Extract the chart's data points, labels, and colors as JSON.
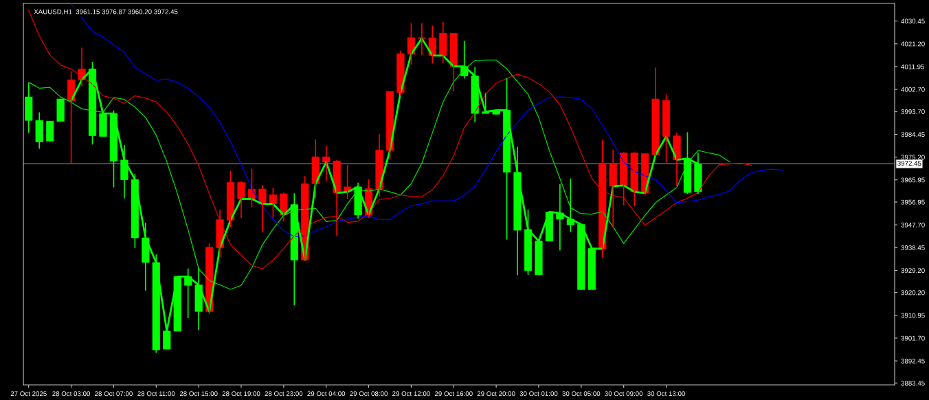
{
  "chart_data": {
    "type": "candlestick",
    "title": "XAUUSD,H1  3961.15 3976.87 3960.20 3972.45",
    "categories": [
      "27 Oct 2025",
      null,
      null,
      null,
      "28 Oct 03:00",
      null,
      null,
      null,
      "28 Oct 07:00",
      null,
      null,
      null,
      "28 Oct 11:00",
      null,
      null,
      null,
      "28 Oct 15:00",
      null,
      null,
      null,
      "28 Oct 19:00",
      null,
      null,
      null,
      "28 Oct 23:00",
      null,
      null,
      null,
      "29 Oct 04:00",
      null,
      null,
      null,
      "29 Oct 08:00",
      null,
      null,
      null,
      "29 Oct 12:00",
      null,
      null,
      null,
      "29 Oct 16:00",
      null,
      null,
      null,
      "29 Oct 20:00",
      null,
      null,
      null,
      "30 Oct 01:00",
      null,
      null,
      null,
      "30 Oct 05:00",
      null,
      null,
      null,
      "30 Oct 09:00",
      null,
      null,
      null,
      "30 Oct 13:00",
      null,
      null,
      null,
      null,
      null,
      null,
      null,
      null,
      null,
      null,
      null,
      null,
      null,
      null,
      null,
      null,
      null,
      null,
      null,
      null,
      null
    ],
    "ohlc": [
      [
        3990.1,
        4005.3,
        3985.1,
        3999.6
      ],
      [
        3981.4,
        3993.4,
        3978.6,
        3990.1
      ],
      [
        3981.7,
        3989.8,
        3981.4,
        3989.8
      ],
      [
        3989.7,
        3998.8,
        3989.7,
        3998.8
      ],
      [
        4006.6,
        4010.0,
        3972.4,
        3998.1
      ],
      [
        4011.0,
        4019.7,
        4004.0,
        4006.6
      ],
      [
        3983.9,
        4013.8,
        3980.3,
        4011.0
      ],
      [
        3983.6,
        3992.9,
        3983.6,
        3992.9
      ],
      [
        3973.6,
        3994.2,
        3962.9,
        3992.9
      ],
      [
        3966.0,
        3980.2,
        3958.5,
        3974.0
      ],
      [
        3942.4,
        3968.3,
        3938.3,
        3966.1
      ],
      [
        3932.4,
        3948.6,
        3921.0,
        3942.4
      ],
      [
        3896.9,
        3935.7,
        3895.7,
        3932.4
      ],
      [
        3897.2,
        3904.6,
        3897.2,
        3904.6
      ],
      [
        3904.5,
        3926.7,
        3904.5,
        3926.7
      ],
      [
        3923.1,
        3930.0,
        3909.8,
        3926.7
      ],
      [
        3912.5,
        3930.0,
        3905.0,
        3923.3
      ],
      [
        3938.6,
        3940.1,
        3911.5,
        3912.5
      ],
      [
        3949.8,
        3953.9,
        3934.5,
        3938.4
      ],
      [
        3964.9,
        3969.6,
        3946.7,
        3949.6
      ],
      [
        3964.9,
        3965.3,
        3950.5,
        3958.2
      ],
      [
        3962.2,
        3970.5,
        3954.9,
        3958.2
      ],
      [
        3962.2,
        3963.9,
        3944.6,
        3956.2
      ],
      [
        3959.9,
        3962.8,
        3950.5,
        3956.2
      ],
      [
        3960.3,
        3960.8,
        3949.1,
        3951.7
      ],
      [
        3933.4,
        3960.5,
        3915.0,
        3955.9
      ],
      [
        3964.4,
        3967.6,
        3933.2,
        3933.4
      ],
      [
        3975.3,
        3982.4,
        3958.5,
        3964.4
      ],
      [
        3975.3,
        3979.8,
        3965.5,
        3973.2
      ],
      [
        3973.6,
        3974.0,
        3943.2,
        3960.7
      ],
      [
        3963.1,
        3972.0,
        3958.2,
        3961.0
      ],
      [
        3951.7,
        3964.8,
        3950.2,
        3963.1
      ],
      [
        3962.4,
        3966.2,
        3950.5,
        3951.7
      ],
      [
        3978.1,
        3984.6,
        3959.3,
        3962.4
      ],
      [
        4001.9,
        4001.9,
        3974.3,
        3977.9
      ],
      [
        4017.2,
        4018.4,
        3999.9,
        4001.4
      ],
      [
        4023.7,
        4029.6,
        4012.8,
        4017.0
      ],
      [
        4023.7,
        4029.6,
        4016.7,
        4023.4
      ],
      [
        4023.6,
        4028.6,
        4013.3,
        4016.4
      ],
      [
        4025.5,
        4030.1,
        4013.3,
        4016.4
      ],
      [
        4025.5,
        4025.5,
        4002.0,
        4012.0
      ],
      [
        4008.2,
        4022.4,
        4007.1,
        4012.0
      ],
      [
        3992.9,
        4011.8,
        3989.3,
        4008.2
      ],
      [
        3992.9,
        4001.2,
        3992.9,
        3993.6
      ],
      [
        3992.6,
        3994.2,
        3992.6,
        3994.2
      ],
      [
        3969.1,
        4007.4,
        3941.7,
        3994.2
      ],
      [
        3945.5,
        3979.4,
        3927.2,
        3969.0
      ],
      [
        3929.1,
        3953.9,
        3927.4,
        3945.8
      ],
      [
        3927.4,
        3941.1,
        3927.4,
        3941.1
      ],
      [
        3941.1,
        3952.9,
        3941.1,
        3952.9
      ],
      [
        3950.0,
        3964.2,
        3937.3,
        3952.5
      ],
      [
        3947.7,
        3966.5,
        3944.8,
        3950.0
      ],
      [
        3921.4,
        3947.9,
        3921.2,
        3947.9
      ],
      [
        3921.4,
        3938.1,
        3921.4,
        3938.1
      ],
      [
        3972.7,
        3982.3,
        3934.5,
        3937.9
      ],
      [
        3972.7,
        3978.2,
        3946.4,
        3963.4
      ],
      [
        3976.9,
        3977.2,
        3955.6,
        3963.7
      ],
      [
        3976.9,
        3977.2,
        3955.3,
        3961.1
      ],
      [
        3976.6,
        3976.6,
        3959.8,
        3960.6
      ],
      [
        3998.8,
        4011.5,
        3975.6,
        3976.1
      ],
      [
        3998.2,
        4000.7,
        3973.0,
        3983.6
      ],
      [
        3983.8,
        3985.1,
        3963.4,
        3974.1
      ],
      [
        3960.8,
        3985.3,
        3960.3,
        3974.6
      ],
      [
        3961.15,
        3976.87,
        3960.2,
        3972.45
      ],
      null,
      null,
      null,
      null,
      null,
      null,
      null,
      null,
      null,
      null,
      null,
      null,
      null,
      null,
      null,
      null,
      null,
      null
    ],
    "colors": [
      "#00ff00",
      "#00ff00",
      "#00ff00",
      "#00ff00",
      "#ff0000",
      "#ff0000",
      "#00ff00",
      "#00ff00",
      "#00ff00",
      "#00ff00",
      "#00ff00",
      "#00ff00",
      "#00ff00",
      "#00ff00",
      "#00ff00",
      "#00ff00",
      "#00ff00",
      "#ff0000",
      "#ff0000",
      "#ff0000",
      "#ff0000",
      "#ff0000",
      "#ff0000",
      "#ff0000",
      "#ff0000",
      "#00ff00",
      "#ff0000",
      "#ff0000",
      "#ff0000",
      "#ff0000",
      "#ff0000",
      "#00ff00",
      "#ff0000",
      "#ff0000",
      "#ff0000",
      "#ff0000",
      "#ff0000",
      "#ff0000",
      "#ff0000",
      "#ff0000",
      "#ff0000",
      "#00ff00",
      "#00ff00",
      "#00ff00",
      "#00ff00",
      "#00ff00",
      "#00ff00",
      "#00ff00",
      "#00ff00",
      "#00ff00",
      "#00ff00",
      "#00ff00",
      "#00ff00",
      "#00ff00",
      "#ff0000",
      "#ff0000",
      "#ff0000",
      "#ff0000",
      "#ff0000",
      "#ff0000",
      "#ff0000",
      "#ff0000",
      "#00ff00",
      "#00ff00",
      null,
      null,
      null,
      null,
      null,
      null,
      null,
      null,
      null,
      null,
      null,
      null,
      null,
      null,
      null,
      null,
      null,
      null
    ],
    "series": [
      {
        "type": "line",
        "color": "#00ff00",
        "values": [
          null,
          null,
          null,
          null,
          3998.1,
          4006.6,
          4011.0,
          3992.9,
          3992.9,
          3974.0,
          3966.1,
          3942.4,
          3932.4,
          3904.6,
          3926.7,
          3926.7,
          3923.3,
          3912.5,
          3938.4,
          3949.6,
          3958.2,
          3958.2,
          3956.2,
          3956.2,
          3951.7,
          3955.9,
          3933.4,
          3964.4,
          3973.2,
          3960.7,
          3961.0,
          3963.1,
          3951.7,
          3962.4,
          3977.9,
          4001.4,
          4017.0,
          4023.4,
          4016.4,
          4016.4,
          4012.0,
          4012.0,
          4008.2,
          3993.6,
          3994.2,
          3994.2,
          3969.0,
          3945.8,
          3941.1,
          3952.9,
          3952.5,
          3950.0,
          3947.9,
          3938.1,
          3937.9,
          3963.4,
          3963.7,
          3961.1,
          3960.6,
          3976.1,
          3983.6,
          3974.1,
          3974.6,
          3972.45,
          null,
          null,
          null,
          null,
          null,
          null,
          null,
          null,
          null,
          null,
          null,
          null,
          null,
          null,
          null,
          null,
          null,
          null
        ]
      },
      {
        "type": "line",
        "color": "#00e000",
        "values": [
          4005.6,
          4003.2,
          4003.5,
          3999.6,
          3997.5,
          3994.8,
          3994.0,
          3993.4,
          3999.4,
          3998.6,
          3995.5,
          3991.3,
          3984.1,
          3973.3,
          3960.3,
          3945.8,
          3929.8,
          3925.1,
          3923.3,
          3921.5,
          3923.1,
          3930.3,
          3939.6,
          3946.0,
          3951.5,
          3953.6,
          3954.0,
          3954.4,
          3949.0,
          3949.5,
          3956.2,
          3961.9,
          3961.4,
          3962.2,
          3961.1,
          3959.8,
          3964.4,
          3972.7,
          3985.1,
          3997.6,
          4005.8,
          4010.8,
          4014.4,
          4014.6,
          4014.6,
          4011.0,
          4005.8,
          4000.7,
          3991.3,
          3977.9,
          3966.5,
          3954.6,
          3952.2,
          3952.0,
          3953.1,
          3946.9,
          3940.1,
          3945.8,
          3951.5,
          3956.7,
          3959.8,
          3962.9,
          3972.7,
          3977.9,
          3976.9,
          3976.0,
          3973.2,
          null,
          null,
          null,
          null,
          null,
          null,
          null,
          null,
          null,
          null,
          null,
          null,
          null,
          null,
          null
        ]
      },
      {
        "type": "line",
        "color": "#e00000",
        "values": [
          4034.8,
          4024.4,
          4016.7,
          4012.6,
          4011.0,
          4007.9,
          4004.8,
          4000.1,
          3999.1,
          3997.0,
          4000.1,
          3999.1,
          3997.6,
          3993.4,
          3987.7,
          3980.5,
          3971.7,
          3960.3,
          3949.4,
          3939.6,
          3935.4,
          3931.3,
          3929.8,
          3933.4,
          3938.1,
          3943.2,
          3946.9,
          3949.0,
          3950.7,
          3951.2,
          3948.7,
          3949.1,
          3952.5,
          3958.0,
          3958.4,
          3959.8,
          3959.3,
          3959.1,
          3961.9,
          3967.6,
          3975.8,
          3987.2,
          3993.4,
          4000.7,
          4005.3,
          4007.1,
          4008.9,
          4007.4,
          4005.0,
          4001.7,
          3996.5,
          3987.2,
          3976.9,
          3966.5,
          3961.4,
          3959.6,
          3958.8,
          3953.1,
          3947.6,
          3950.5,
          3953.6,
          3956.7,
          3958.5,
          3960.8,
          3967.6,
          3972.2,
          3972.4,
          3972.7,
          3971.9,
          null,
          null,
          null,
          null,
          null,
          null,
          null,
          null,
          null,
          null,
          null,
          null,
          null
        ]
      },
      {
        "type": "line",
        "color": "#0000ff",
        "values": [
          null,
          null,
          null,
          null,
          4037.4,
          4031.7,
          4026.3,
          4023.9,
          4020.8,
          4017.7,
          4011.8,
          4008.9,
          4006.4,
          4006.9,
          4005.6,
          4003.2,
          3999.6,
          3995.5,
          3989.3,
          3981.5,
          3972.2,
          3962.4,
          3955.1,
          3950.0,
          3945.3,
          3942.9,
          3943.2,
          3945.3,
          3946.9,
          3949.0,
          3950.0,
          3950.8,
          3951.2,
          3949.8,
          3949.8,
          3952.9,
          3955.4,
          3956.2,
          3957.4,
          3957.4,
          3957.4,
          3959.8,
          3963.4,
          3970.1,
          3977.4,
          3984.1,
          3989.3,
          3994.2,
          3997.0,
          3999.4,
          3999.6,
          3999.4,
          3998.6,
          3994.9,
          3988.2,
          3981.0,
          3973.2,
          3969.4,
          3967.6,
          3966.0,
          3961.6,
          3956.7,
          3957.2,
          3957.7,
          3959.1,
          3960.0,
          3961.6,
          3966.0,
          3968.8,
          3969.8,
          3970.3,
          3969.9,
          null,
          null,
          null,
          null,
          null,
          null,
          null,
          null,
          null,
          null
        ]
      }
    ],
    "ylim": [
      3882.7,
      4037.6
    ],
    "yticks": [
      {
        "value": 4030.45,
        "label": "4030.45"
      },
      {
        "value": 4021.2,
        "label": "4021.20"
      },
      {
        "value": 4011.95,
        "label": "4011.95"
      },
      {
        "value": 4002.7,
        "label": "4002.70"
      },
      {
        "value": 3993.7,
        "label": "3993.70"
      },
      {
        "value": 3984.45,
        "label": "3984.45"
      },
      {
        "value": 3975.2,
        "label": "3975.20"
      },
      {
        "value": 3965.95,
        "label": "3965.95"
      },
      {
        "value": 3956.95,
        "label": "3956.95"
      },
      {
        "value": 3947.7,
        "label": "3947.70"
      },
      {
        "value": 3938.45,
        "label": "3938.45"
      },
      {
        "value": 3929.2,
        "label": "3929.20"
      },
      {
        "value": 3920.2,
        "label": "3920.20"
      },
      {
        "value": 3910.95,
        "label": "3910.95"
      },
      {
        "value": 3901.7,
        "label": "3901.70"
      },
      {
        "value": 3892.45,
        "label": "3892.45"
      },
      {
        "value": 3883.45,
        "label": "3883.45"
      }
    ],
    "ref_lines": [
      {
        "axis": "y",
        "value": 3972.45,
        "label": "3972.45",
        "color": "#778899"
      }
    ],
    "grid": false,
    "legend": false
  }
}
